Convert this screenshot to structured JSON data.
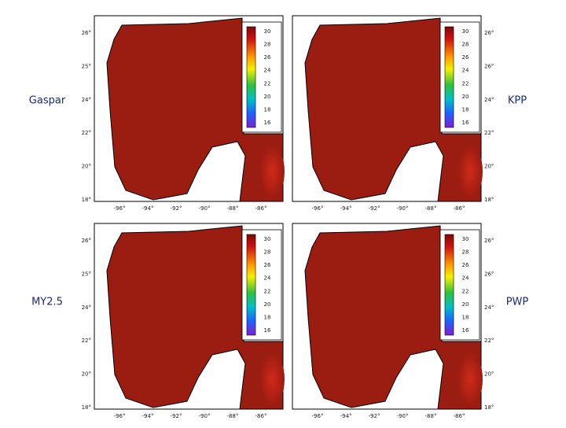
{
  "panels": [
    {
      "label": "Gaspar",
      "colorbar_ticks": [
        "30",
        "28",
        "26",
        "24",
        "22",
        "20",
        "18",
        "16"
      ],
      "lat_ticks": [
        "26°",
        "25°",
        "24°",
        "22°",
        "20°",
        "18°"
      ],
      "lon_ticks": [
        "-96°",
        "-94°",
        "-92°",
        "-90°",
        "-88°",
        "-86°"
      ]
    },
    {
      "label": "KPP",
      "colorbar_ticks": [
        "30",
        "28",
        "26",
        "24",
        "22",
        "20",
        "18",
        "16"
      ],
      "lat_ticks": [
        "26°",
        "26°",
        "24°",
        "22°",
        "20°",
        "18°"
      ],
      "lon_ticks": [
        "-96°",
        "-94°",
        "-92°",
        "-90°",
        "-88°",
        "-86°"
      ]
    },
    {
      "label": "MY2.5",
      "colorbar_ticks": [
        "30",
        "28",
        "26",
        "24",
        "22",
        "20",
        "18",
        "16"
      ],
      "lat_ticks": [
        "26°",
        "25°",
        "24°",
        "22°",
        "20°",
        "18°"
      ],
      "lon_ticks": [
        "-96°",
        "-94°",
        "-92°",
        "-90°",
        "-88°",
        "-86°"
      ]
    },
    {
      "label": "PWP",
      "colorbar_ticks": [
        "30",
        "28",
        "26",
        "24",
        "22",
        "20",
        "18",
        "16"
      ],
      "lat_ticks": [
        "26°",
        "26°",
        "24°",
        "22°",
        "20°",
        "18°"
      ],
      "lon_ticks": [
        "-96°",
        "-94°",
        "-92°",
        "-90°",
        "-88°",
        "-86°"
      ]
    }
  ]
}
